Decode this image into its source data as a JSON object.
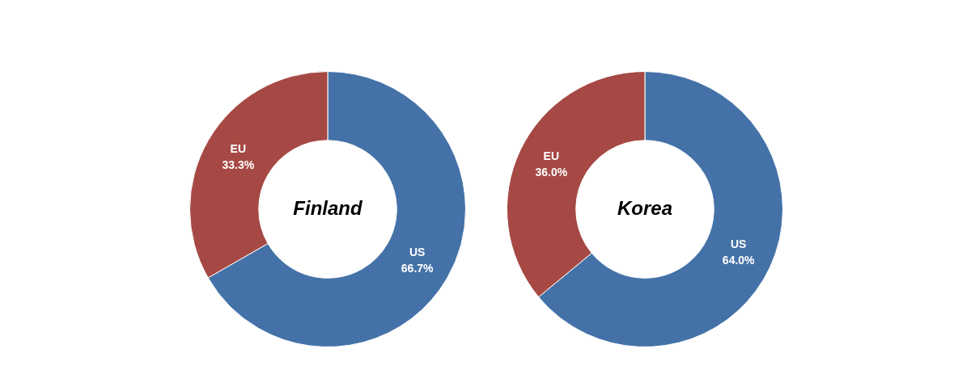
{
  "chart_data": [
    {
      "type": "doughnut",
      "title": "Finland",
      "categories": [
        "US",
        "EU"
      ],
      "values": [
        66.7,
        33.3
      ],
      "value_labels": [
        "66.7%",
        "33.3%"
      ],
      "colors": [
        "#4472a8",
        "#a64944"
      ],
      "data_labels": true
    },
    {
      "type": "doughnut",
      "title": "Korea",
      "categories": [
        "US",
        "EU"
      ],
      "values": [
        64.0,
        36.0
      ],
      "value_labels": [
        "64.0%",
        "36.0%"
      ],
      "colors": [
        "#4472a8",
        "#a64944"
      ],
      "data_labels": true
    }
  ]
}
